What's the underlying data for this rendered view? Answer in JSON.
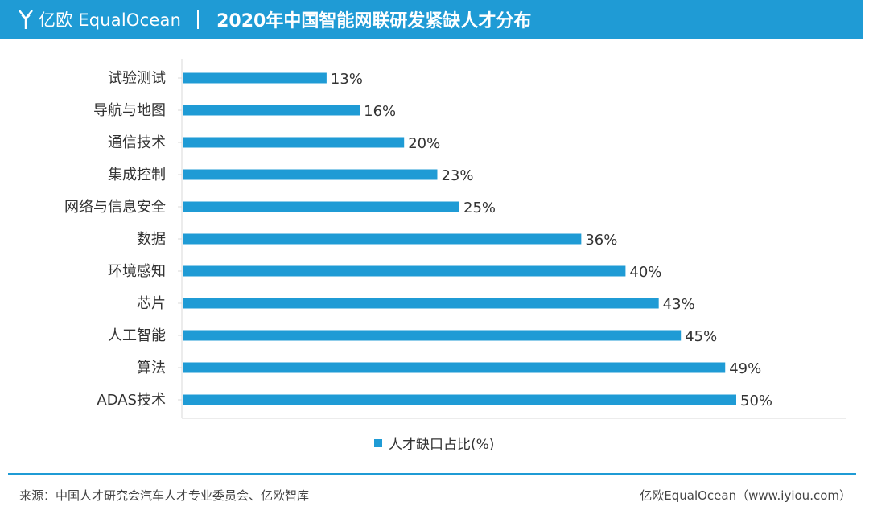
{
  "header": {
    "brand_cn": "亿欧",
    "brand_en": "EqualOcean",
    "title": "2020年中国智能网联研发紧缺人才分布"
  },
  "chart_data": {
    "type": "bar",
    "orientation": "horizontal",
    "categories": [
      "试验测试",
      "导航与地图",
      "通信技术",
      "集成控制",
      "网络与信息安全",
      "数据",
      "环境感知",
      "芯片",
      "人工智能",
      "算法",
      "ADAS技术"
    ],
    "values": [
      13,
      16,
      20,
      23,
      25,
      36,
      40,
      43,
      45,
      49,
      50
    ],
    "data_labels": [
      "13%",
      "16%",
      "20%",
      "23%",
      "25%",
      "36%",
      "40%",
      "43%",
      "45%",
      "49%",
      "50%"
    ],
    "series": [
      {
        "name": "人才缺口占比(%)",
        "values": [
          13,
          16,
          20,
          23,
          25,
          36,
          40,
          43,
          45,
          49,
          50
        ]
      }
    ],
    "xlim": [
      0,
      60
    ],
    "grid": false,
    "legend_position": "bottom",
    "bar_color": "#1f9bd5"
  },
  "legend": {
    "label": "人才缺口占比(%)"
  },
  "footer": {
    "source": "来源：中国人才研究会汽车人才专业委员会、亿欧智库",
    "credit": "亿欧EqualOcean（www.iyiou.com）"
  }
}
